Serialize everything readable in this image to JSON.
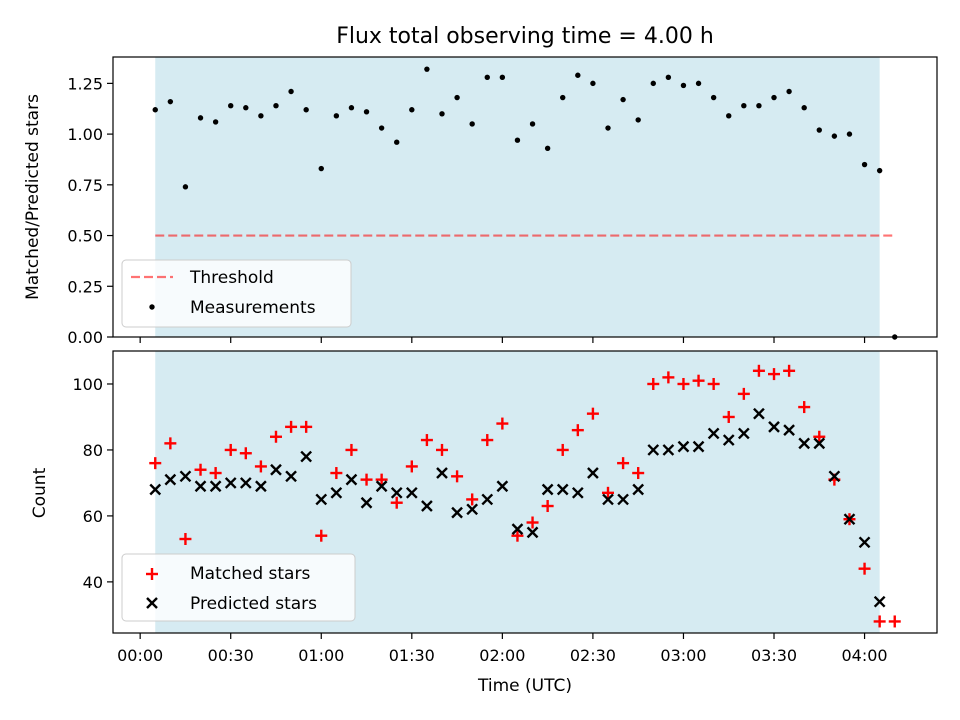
{
  "title": "Flux total observing time = 4.00 h",
  "colors": {
    "background_band": "#add8e6",
    "threshold": "#ff0000",
    "measurement": "#000000",
    "matched": "#ff0000",
    "predicted": "#000000"
  },
  "chart_data": [
    {
      "type": "scatter",
      "panel": "top",
      "ylabel": "Matched/Predicted stars",
      "ylim": [
        0.0,
        1.38
      ],
      "xlim_minutes": [
        -9,
        264
      ],
      "shaded_span_minutes": [
        5,
        245
      ],
      "yticks": [
        "0.00",
        "0.25",
        "0.50",
        "0.75",
        "1.00",
        "1.25"
      ],
      "threshold": {
        "name": "Threshold",
        "value": 0.5,
        "x_minutes": [
          5,
          250
        ],
        "style": "dashed"
      },
      "series": [
        {
          "name": "Measurements",
          "marker": "dot",
          "x_minutes": [
            5,
            10,
            15,
            20,
            25,
            30,
            35,
            40,
            45,
            50,
            55,
            60,
            65,
            70,
            75,
            80,
            85,
            90,
            95,
            100,
            105,
            110,
            115,
            120,
            125,
            130,
            135,
            140,
            145,
            150,
            155,
            160,
            165,
            170,
            175,
            180,
            185,
            190,
            195,
            200,
            205,
            210,
            215,
            220,
            225,
            230,
            235,
            240,
            245,
            250
          ],
          "values": [
            1.12,
            1.16,
            0.74,
            1.08,
            1.06,
            1.14,
            1.13,
            1.09,
            1.14,
            1.21,
            1.12,
            0.83,
            1.09,
            1.13,
            1.11,
            1.03,
            0.96,
            1.12,
            1.32,
            1.1,
            1.18,
            1.05,
            1.28,
            1.28,
            0.97,
            1.05,
            0.93,
            1.18,
            1.29,
            1.25,
            1.03,
            1.17,
            1.07,
            1.25,
            1.28,
            1.24,
            1.25,
            1.18,
            1.09,
            1.14,
            1.14,
            1.18,
            1.21,
            1.13,
            1.02,
            0.99,
            1.0,
            0.85,
            0.82,
            0.0
          ]
        }
      ],
      "legend": {
        "placement": "lower-left",
        "entries": [
          "Threshold",
          "Measurements"
        ]
      }
    },
    {
      "type": "scatter",
      "panel": "bottom",
      "ylabel": "Count",
      "xlabel": "Time (UTC)",
      "ylim": [
        24.5,
        110
      ],
      "xlim_minutes": [
        -9,
        264
      ],
      "shaded_span_minutes": [
        5,
        245
      ],
      "yticks": [
        "40",
        "60",
        "80",
        "100"
      ],
      "xticks": [
        "00:00",
        "00:30",
        "01:00",
        "01:30",
        "02:00",
        "02:30",
        "03:00",
        "03:30",
        "04:00"
      ],
      "series": [
        {
          "name": "Matched stars",
          "marker": "plus",
          "x_minutes": [
            5,
            10,
            15,
            20,
            25,
            30,
            35,
            40,
            45,
            50,
            55,
            60,
            65,
            70,
            75,
            80,
            85,
            90,
            95,
            100,
            105,
            110,
            115,
            120,
            125,
            130,
            135,
            140,
            145,
            150,
            155,
            160,
            165,
            170,
            175,
            180,
            185,
            190,
            195,
            200,
            205,
            210,
            215,
            220,
            225,
            230,
            235,
            240,
            245,
            250
          ],
          "values": [
            76,
            82,
            53,
            74,
            73,
            80,
            79,
            75,
            84,
            87,
            87,
            54,
            73,
            80,
            71,
            71,
            64,
            75,
            83,
            80,
            72,
            65,
            83,
            88,
            54,
            58,
            63,
            80,
            86,
            91,
            67,
            76,
            73,
            100,
            102,
            100,
            101,
            100,
            90,
            97,
            104,
            103,
            104,
            93,
            84,
            71,
            59,
            44,
            28,
            28
          ]
        },
        {
          "name": "Predicted stars",
          "marker": "x",
          "x_minutes": [
            5,
            10,
            15,
            20,
            25,
            30,
            35,
            40,
            45,
            50,
            55,
            60,
            65,
            70,
            75,
            80,
            85,
            90,
            95,
            100,
            105,
            110,
            115,
            120,
            125,
            130,
            135,
            140,
            145,
            150,
            155,
            160,
            165,
            170,
            175,
            180,
            185,
            190,
            195,
            200,
            205,
            210,
            215,
            220,
            225,
            230,
            235,
            240,
            245
          ],
          "values": [
            68,
            71,
            72,
            69,
            69,
            70,
            70,
            69,
            74,
            72,
            78,
            65,
            67,
            71,
            64,
            69,
            67,
            67,
            63,
            73,
            61,
            62,
            65,
            69,
            56,
            55,
            68,
            68,
            67,
            73,
            65,
            65,
            68,
            80,
            80,
            81,
            81,
            85,
            83,
            85,
            91,
            87,
            86,
            82,
            82,
            72,
            59,
            52,
            34
          ]
        }
      ],
      "legend": {
        "placement": "lower-left",
        "entries": [
          "Matched stars",
          "Predicted stars"
        ]
      }
    }
  ]
}
